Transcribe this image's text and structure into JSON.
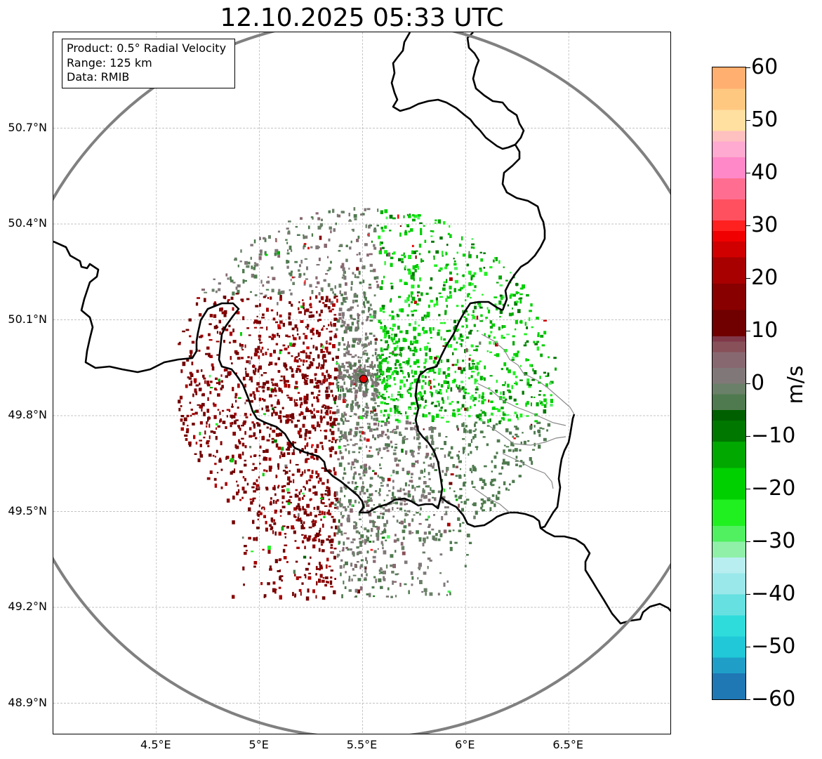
{
  "title": "12.10.2025 05:33 UTC",
  "info": {
    "product": "Product: 0.5° Radial Velocity",
    "range": "Range: 125 km",
    "data": "Data: RMIB"
  },
  "map": {
    "lon_range": [
      4.0,
      7.0
    ],
    "lat_range": [
      48.8,
      51.0
    ],
    "lat_ticks": [
      {
        "value": 50.7,
        "label": "50.7°N"
      },
      {
        "value": 50.4,
        "label": "50.4°N"
      },
      {
        "value": 50.1,
        "label": "50.1°N"
      },
      {
        "value": 49.8,
        "label": "49.8°N"
      },
      {
        "value": 49.5,
        "label": "49.5°N"
      },
      {
        "value": 49.2,
        "label": "49.2°N"
      },
      {
        "value": 48.9,
        "label": "48.9°N"
      }
    ],
    "lon_ticks": [
      {
        "value": 4.5,
        "label": "4.5°E"
      },
      {
        "value": 5.0,
        "label": "5°E"
      },
      {
        "value": 5.5,
        "label": "5.5°E"
      },
      {
        "value": 6.0,
        "label": "6°E"
      },
      {
        "value": 6.5,
        "label": "6.5°E"
      }
    ],
    "radar_site": {
      "lon": 5.505,
      "lat": 49.915
    },
    "range_km": 125,
    "colors": {
      "grid": "#b0b0b0",
      "range_ring": "#808080",
      "border": "#000000",
      "minor_border": "#8a8a8a",
      "radar_marker": "#e00000"
    }
  },
  "colorbar": {
    "unit": "m/s",
    "min": -60,
    "max": 60,
    "ticks": [
      {
        "value": 60,
        "label": "60"
      },
      {
        "value": 50,
        "label": "50"
      },
      {
        "value": 40,
        "label": "40"
      },
      {
        "value": 30,
        "label": "30"
      },
      {
        "value": 20,
        "label": "20"
      },
      {
        "value": 10,
        "label": "10"
      },
      {
        "value": 0,
        "label": "0"
      },
      {
        "value": -10,
        "label": "−10"
      },
      {
        "value": -20,
        "label": "−20"
      },
      {
        "value": -30,
        "label": "−30"
      },
      {
        "value": -40,
        "label": "−40"
      },
      {
        "value": -50,
        "label": "−50"
      },
      {
        "value": -60,
        "label": "−60"
      }
    ],
    "stops": [
      {
        "value": -60,
        "color": "#1f77b4"
      },
      {
        "value": -55,
        "color": "#1f9fc8"
      },
      {
        "value": -52,
        "color": "#20c8d8"
      },
      {
        "value": -48,
        "color": "#2fdcdc"
      },
      {
        "value": -44,
        "color": "#66e0e0"
      },
      {
        "value": -40,
        "color": "#9ae8ea"
      },
      {
        "value": -36,
        "color": "#b8eef0"
      },
      {
        "value": -33,
        "color": "#90f0a8"
      },
      {
        "value": -30,
        "color": "#50f060"
      },
      {
        "value": -27,
        "color": "#20f020"
      },
      {
        "value": -22,
        "color": "#00d000"
      },
      {
        "value": -16,
        "color": "#00a800"
      },
      {
        "value": -11,
        "color": "#007800"
      },
      {
        "value": -7,
        "color": "#006000"
      },
      {
        "value": -5,
        "color": "#4f7a4f"
      },
      {
        "value": -2,
        "color": "#6a8068"
      },
      {
        "value": 0,
        "color": "#807878"
      },
      {
        "value": 3,
        "color": "#886870"
      },
      {
        "value": 6,
        "color": "#885058"
      },
      {
        "value": 8,
        "color": "#803848"
      },
      {
        "value": 9,
        "color": "#700000"
      },
      {
        "value": 14,
        "color": "#880000"
      },
      {
        "value": 19,
        "color": "#a80000"
      },
      {
        "value": 24,
        "color": "#d00000"
      },
      {
        "value": 27,
        "color": "#f00000"
      },
      {
        "value": 29,
        "color": "#ff2020"
      },
      {
        "value": 31,
        "color": "#ff5060"
      },
      {
        "value": 35,
        "color": "#ff6e90"
      },
      {
        "value": 39,
        "color": "#ff88c8"
      },
      {
        "value": 43,
        "color": "#ffaad0"
      },
      {
        "value": 46,
        "color": "#ffc0c0"
      },
      {
        "value": 48,
        "color": "#ffe0a0"
      },
      {
        "value": 52,
        "color": "#ffc880"
      },
      {
        "value": 56,
        "color": "#ffb070"
      },
      {
        "value": 60,
        "color": "#ff9a50"
      }
    ]
  }
}
